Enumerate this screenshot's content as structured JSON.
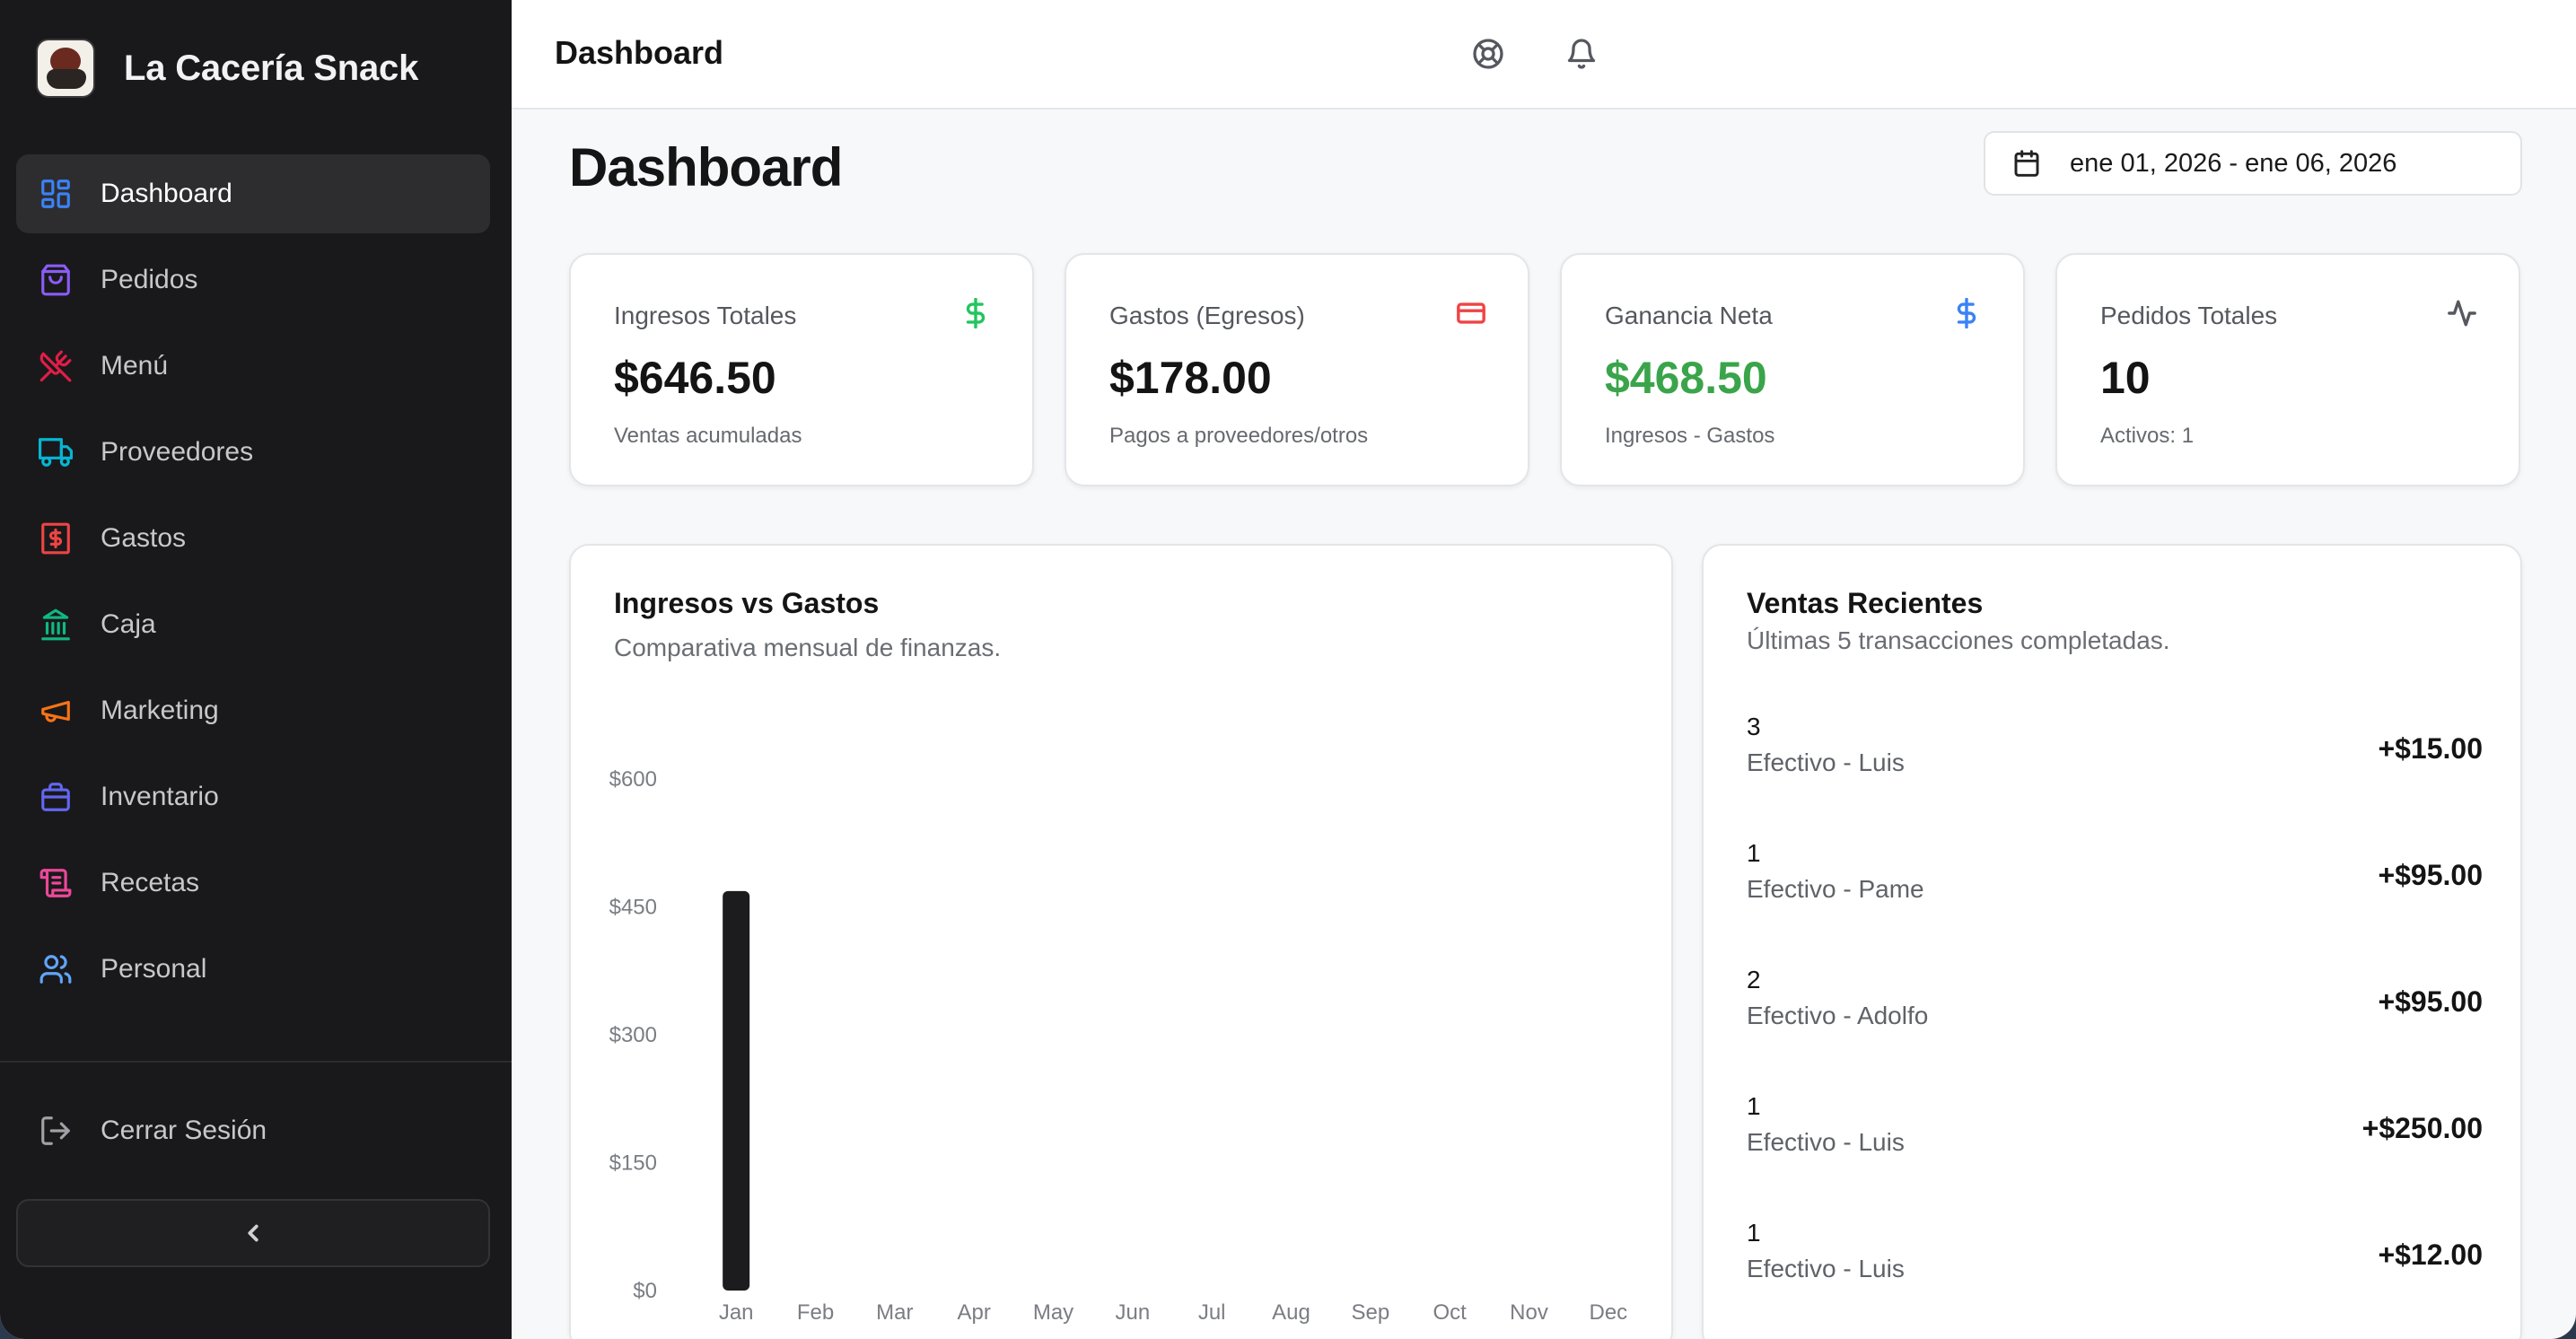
{
  "app": {
    "name": "La Cacería Snack",
    "logo_text": "La Cacería Snack"
  },
  "sidebar": {
    "items": [
      {
        "label": "Dashboard",
        "icon": "dashboard-icon",
        "color": "#3b82f6",
        "active": true
      },
      {
        "label": "Pedidos",
        "icon": "shopping-bag-icon",
        "color": "#8b5cf6",
        "active": false
      },
      {
        "label": "Menú",
        "icon": "utensils-crossed-icon",
        "color": "#e11d48",
        "active": false
      },
      {
        "label": "Proveedores",
        "icon": "truck-icon",
        "color": "#06b6d4",
        "active": false
      },
      {
        "label": "Gastos",
        "icon": "receipt-dollar-icon",
        "color": "#ef4444",
        "active": false
      },
      {
        "label": "Caja",
        "icon": "landmark-icon",
        "color": "#10b981",
        "active": false
      },
      {
        "label": "Marketing",
        "icon": "megaphone-icon",
        "color": "#f97316",
        "active": false
      },
      {
        "label": "Inventario",
        "icon": "package-icon",
        "color": "#6366f1",
        "active": false
      },
      {
        "label": "Recetas",
        "icon": "scroll-icon",
        "color": "#ec4899",
        "active": false
      },
      {
        "label": "Personal",
        "icon": "users-icon",
        "color": "#60a5fa",
        "active": false
      }
    ],
    "logout_label": "Cerrar Sesión"
  },
  "header": {
    "title": "Dashboard"
  },
  "main": {
    "title": "Dashboard",
    "date_range": "ene 01, 2026 - ene 06, 2026"
  },
  "stats": [
    {
      "label": "Ingresos Totales",
      "value": "$646.50",
      "sub": "Ventas acumuladas",
      "icon": "dollar-icon",
      "icon_color": "#22c55e",
      "value_color": "#141414"
    },
    {
      "label": "Gastos (Egresos)",
      "value": "$178.00",
      "sub": "Pagos a proveedores/otros",
      "icon": "credit-card-icon",
      "icon_color": "#ef4444",
      "value_color": "#141414"
    },
    {
      "label": "Ganancia Neta",
      "value": "$468.50",
      "sub": "Ingresos - Gastos",
      "icon": "dollar-icon",
      "icon_color": "#3b82f6",
      "value_color": "#3aa44a"
    },
    {
      "label": "Pedidos Totales",
      "value": "10",
      "sub": "Activos: 1",
      "icon": "activity-icon",
      "icon_color": "#55585e",
      "value_color": "#141414"
    }
  ],
  "chart_panel": {
    "title": "Ingresos vs Gastos",
    "subtitle": "Comparativa mensual de finanzas."
  },
  "chart_data": {
    "type": "bar",
    "categories": [
      "Jan",
      "Feb",
      "Mar",
      "Apr",
      "May",
      "Jun",
      "Jul",
      "Aug",
      "Sep",
      "Oct",
      "Nov",
      "Dec"
    ],
    "series": [
      {
        "values": [
          468.5,
          0,
          0,
          0,
          0,
          0,
          0,
          0,
          0,
          0,
          0,
          0
        ],
        "color": "#1c1c1e"
      }
    ],
    "yticks": [
      "$0",
      "$150",
      "$300",
      "$450",
      "$600"
    ],
    "ylim": [
      0,
      600
    ],
    "grid": false
  },
  "sales_panel": {
    "title": "Ventas Recientes",
    "subtitle": "Últimas 5 transacciones completadas.",
    "rows": [
      {
        "qty": "3",
        "desc": "Efectivo - Luis",
        "amount": "+$15.00"
      },
      {
        "qty": "1",
        "desc": "Efectivo - Pame",
        "amount": "+$95.00"
      },
      {
        "qty": "2",
        "desc": "Efectivo - Adolfo",
        "amount": "+$95.00"
      },
      {
        "qty": "1",
        "desc": "Efectivo - Luis",
        "amount": "+$250.00"
      },
      {
        "qty": "1",
        "desc": "Efectivo - Luis",
        "amount": "+$12.00"
      }
    ]
  }
}
